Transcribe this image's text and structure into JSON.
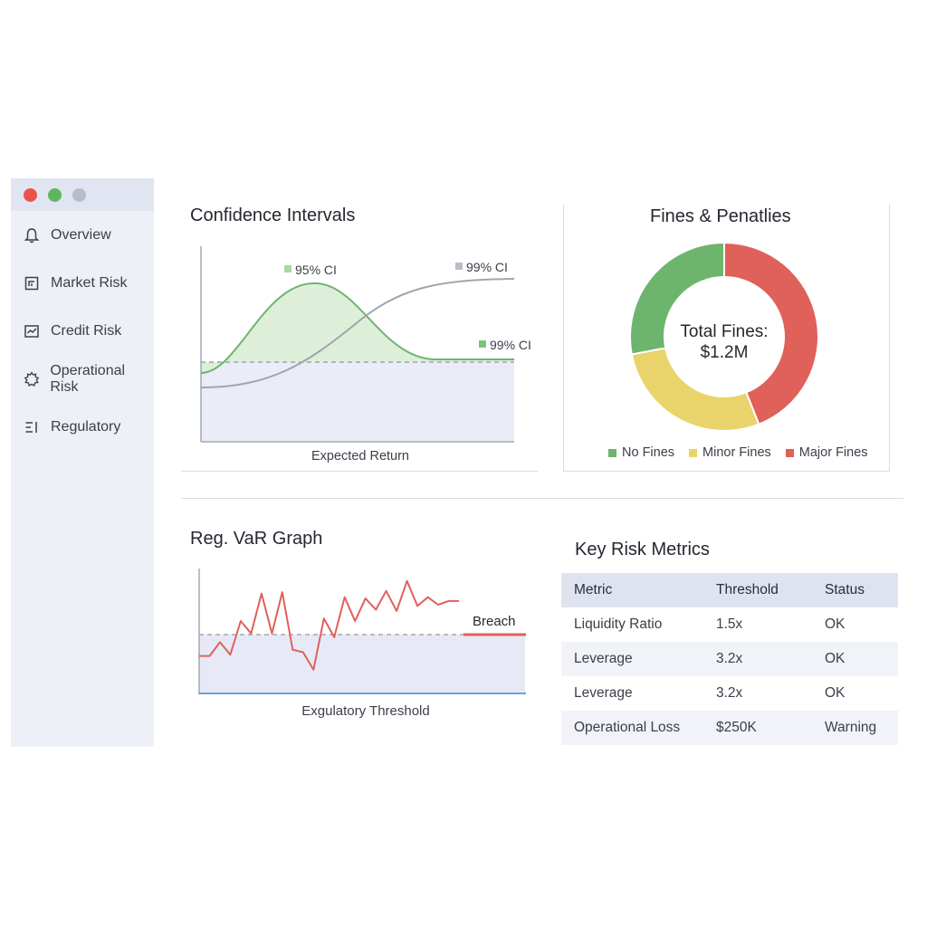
{
  "window": {
    "controls": [
      {
        "name": "close",
        "color": "#e8534f"
      },
      {
        "name": "minimize",
        "color": "#5cb85c"
      },
      {
        "name": "maximize",
        "color": "#b9bdc8"
      }
    ]
  },
  "sidebar": {
    "items": [
      {
        "label": "Overview",
        "icon": "bell-icon"
      },
      {
        "label": "Market Risk",
        "icon": "market-chart-icon"
      },
      {
        "label": "Credit Risk",
        "icon": "credit-chart-icon"
      },
      {
        "label": "Operational Risk",
        "icon": "gear-icon"
      },
      {
        "label": "Regulatory",
        "icon": "list-icon"
      }
    ]
  },
  "confidence_panel": {
    "title": "Confidence Intervals",
    "labels": {
      "ci95": "95% CI",
      "ci99_upper": "99% CI",
      "ci99_lower": "99% CI"
    },
    "xlabel": "Expected Return"
  },
  "fines_panel": {
    "title": "Fines & Penatlies",
    "center_line1": "Total Fines:",
    "center_line2": "$1.2M",
    "legend": [
      {
        "label": "No Fines",
        "color": "#6db56d"
      },
      {
        "label": "Minor Fines",
        "color": "#e8d46a"
      },
      {
        "label": "Major Fines",
        "color": "#e0605a"
      }
    ]
  },
  "var_panel": {
    "title": "Reg. VaR Graph",
    "breach_label": "Breach",
    "xlabel": "Exgulatory Threshold"
  },
  "metrics_panel": {
    "title": "Key Risk Metrics",
    "columns": [
      "Metric",
      "Threshold",
      "Status"
    ],
    "rows": [
      [
        "Liquidity Ratio",
        "1.5x",
        "OK"
      ],
      [
        "Leverage",
        "3.2x",
        "OK"
      ],
      [
        "Leverage",
        "3.2x",
        "OK"
      ],
      [
        "Operational Loss",
        "$250K",
        "Warning"
      ]
    ]
  },
  "chart_data": [
    {
      "type": "area",
      "title": "Confidence Intervals",
      "xlabel": "Expected Return",
      "ylabel": "",
      "series": [
        {
          "name": "95% CI",
          "color": "#6db56d",
          "shape": "bell"
        },
        {
          "name": "99% CI",
          "color": "#9aa0aa",
          "shape": "sigmoid"
        }
      ],
      "grid": false
    },
    {
      "type": "pie",
      "title": "Fines & Penatlies",
      "categories": [
        "No Fines",
        "Minor Fines",
        "Major Fines"
      ],
      "values": [
        28,
        28,
        44
      ],
      "center_text": "Total Fines: $1.2M"
    },
    {
      "type": "line",
      "title": "Reg. VaR Graph",
      "xlabel": "Exgulatory Threshold",
      "series": [
        {
          "values": [
            30,
            30,
            41,
            31,
            58,
            48,
            80,
            48,
            81,
            35,
            33,
            19,
            60,
            45,
            77,
            58,
            76,
            67,
            82,
            66,
            90,
            70,
            77,
            71,
            74,
            74
          ]
        }
      ],
      "threshold": 49,
      "threshold_label": "Breach",
      "ylim": [
        0,
        100
      ]
    }
  ]
}
